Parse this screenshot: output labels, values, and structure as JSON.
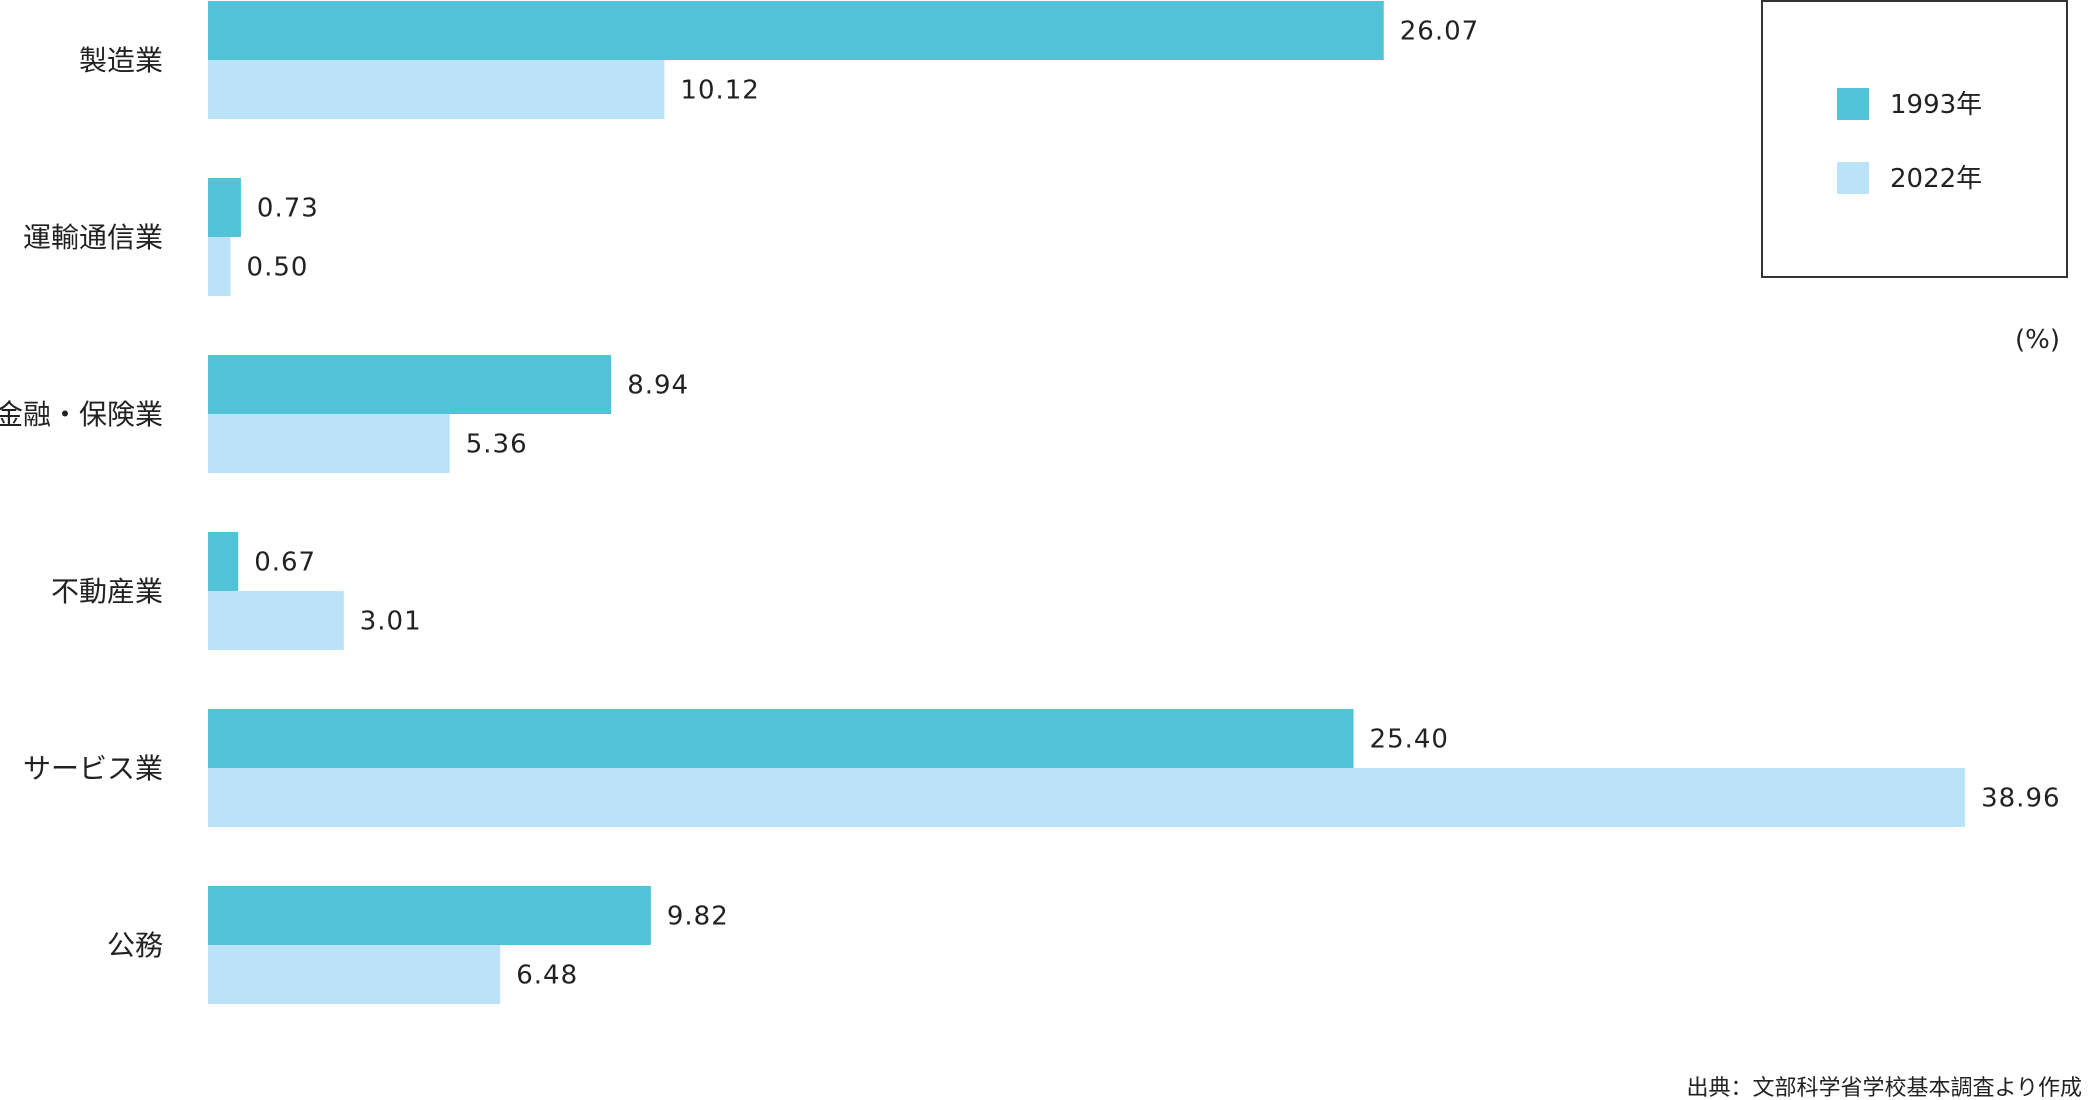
{
  "chart_data": {
    "type": "bar",
    "orientation": "horizontal",
    "categories": [
      "製造業",
      "運輸通信業",
      "金融・保険業",
      "不動産業",
      "サービス業",
      "公務"
    ],
    "series": [
      {
        "name": "1993年",
        "values": [
          26.07,
          0.73,
          8.94,
          0.67,
          25.4,
          9.82
        ],
        "labels": [
          "26.07",
          "0.73",
          "8.94",
          "0.67",
          "25.40",
          "9.82"
        ],
        "color": "#52C3D6"
      },
      {
        "name": "2022年",
        "values": [
          10.12,
          0.5,
          5.36,
          3.01,
          38.96,
          6.48
        ],
        "labels": [
          "10.12",
          "0.50",
          "5.36",
          "3.01",
          "38.96",
          "6.48"
        ],
        "color": "#BBE2F6"
      }
    ],
    "unit_label": "(%)",
    "legend_position": "top-right",
    "grid": false,
    "axis_visible": false
  },
  "source": "出典：文部科学省学校基本調査より作成"
}
